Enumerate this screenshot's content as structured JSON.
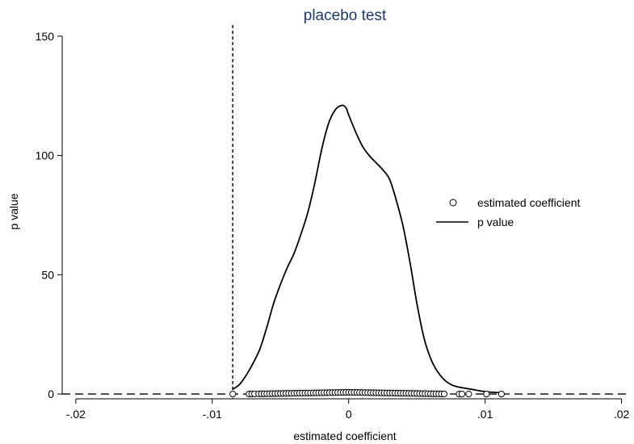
{
  "chart_data": {
    "type": "line",
    "title": "placebo test",
    "xlabel": "estimated coefficient",
    "ylabel": "p value",
    "xlim": [
      -0.021,
      0.0205
    ],
    "ylim": [
      -2,
      154
    ],
    "x_ticks": [
      -0.02,
      -0.01,
      0,
      0.01,
      0.02
    ],
    "x_tick_labels": [
      "-.02",
      "-.01",
      "0",
      ".01",
      ".02"
    ],
    "y_ticks": [
      0,
      50,
      100,
      150
    ],
    "y_tick_labels": [
      "0",
      "50",
      "100",
      "150"
    ],
    "grid": false,
    "legend": {
      "position": "right",
      "entries": [
        "estimated coefficient",
        "p value"
      ]
    },
    "reference_lines": [
      {
        "orientation": "vertical",
        "value": -0.0085,
        "style": "short-dash"
      },
      {
        "orientation": "horizontal",
        "value": 0,
        "style": "long-dash"
      }
    ],
    "series": [
      {
        "name": "estimated coefficient",
        "kind": "scatter",
        "x": [
          -0.0085,
          -0.0073,
          -0.0071,
          -0.0069,
          -0.0066,
          -0.0064,
          -0.0062,
          -0.006,
          -0.0058,
          -0.0056,
          -0.0054,
          -0.0052,
          -0.005,
          -0.0048,
          -0.0046,
          -0.0044,
          -0.0042,
          -0.004,
          -0.0038,
          -0.0036,
          -0.0034,
          -0.0032,
          -0.003,
          -0.0028,
          -0.0026,
          -0.0024,
          -0.0022,
          -0.002,
          -0.0018,
          -0.0016,
          -0.0014,
          -0.0012,
          -0.001,
          -0.0008,
          -0.0006,
          -0.0004,
          -0.0002,
          0,
          0.0002,
          0.0004,
          0.0006,
          0.0008,
          0.001,
          0.0012,
          0.0014,
          0.0016,
          0.0018,
          0.002,
          0.0022,
          0.0024,
          0.0026,
          0.0028,
          0.003,
          0.0032,
          0.0034,
          0.0036,
          0.0038,
          0.004,
          0.0042,
          0.0044,
          0.0046,
          0.0048,
          0.005,
          0.0052,
          0.0054,
          0.0056,
          0.0058,
          0.006,
          0.0062,
          0.0064,
          0.0066,
          0.0068,
          0.007,
          0.0081,
          0.0083,
          0.0088,
          0.0101,
          0.0112
        ],
        "y": [
          0,
          0,
          0.02,
          0.04,
          0.06,
          0.08,
          0.1,
          0.12,
          0.14,
          0.16,
          0.18,
          0.2,
          0.22,
          0.24,
          0.26,
          0.28,
          0.3,
          0.32,
          0.34,
          0.36,
          0.38,
          0.4,
          0.42,
          0.44,
          0.46,
          0.48,
          0.5,
          0.52,
          0.54,
          0.56,
          0.58,
          0.6,
          0.62,
          0.64,
          0.66,
          0.68,
          0.7,
          0.72,
          0.7,
          0.68,
          0.66,
          0.64,
          0.62,
          0.6,
          0.58,
          0.56,
          0.54,
          0.52,
          0.5,
          0.48,
          0.46,
          0.44,
          0.42,
          0.4,
          0.38,
          0.36,
          0.34,
          0.32,
          0.3,
          0.28,
          0.26,
          0.24,
          0.22,
          0.2,
          0.18,
          0.16,
          0.14,
          0.12,
          0.1,
          0.08,
          0.06,
          0.04,
          0.02,
          0,
          0,
          0,
          0,
          0
        ]
      },
      {
        "name": "p value",
        "kind": "line",
        "x": [
          -0.0085,
          -0.008,
          -0.0075,
          -0.007,
          -0.0065,
          -0.006,
          -0.0055,
          -0.005,
          -0.0045,
          -0.004,
          -0.0035,
          -0.003,
          -0.0025,
          -0.002,
          -0.0015,
          -0.001,
          -0.0005,
          -0.0002,
          0,
          0.0005,
          0.001,
          0.0015,
          0.002,
          0.0025,
          0.003,
          0.0035,
          0.004,
          0.0045,
          0.005,
          0.0055,
          0.006,
          0.0065,
          0.007,
          0.0075,
          0.008,
          0.009,
          0.01,
          0.0112
        ],
        "y": [
          2,
          4,
          8,
          13,
          19,
          28,
          38,
          46,
          53,
          59,
          67,
          76,
          88,
          102,
          113,
          119,
          121,
          120,
          117,
          110,
          104,
          100,
          97,
          94,
          90,
          81,
          70,
          55,
          38,
          24,
          15,
          9.5,
          6,
          4,
          3,
          2,
          1,
          0.5
        ]
      }
    ]
  }
}
